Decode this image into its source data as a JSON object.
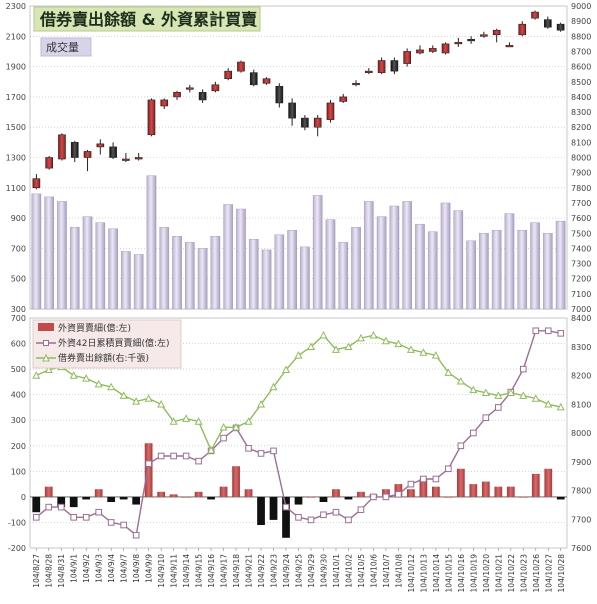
{
  "chart_data": [
    {
      "type": "candlestick",
      "title": "借券賣出餘額 & 外資累計買賣",
      "legend": "成交量",
      "legend_position": "top-left",
      "grid": true,
      "y_left": {
        "min": 300,
        "max": 2300,
        "ticks": [
          300,
          500,
          700,
          900,
          1100,
          1300,
          1500,
          1700,
          1900,
          2100,
          2300
        ]
      },
      "y_right": {
        "min": 7000,
        "max": 9000,
        "ticks": [
          7000,
          7100,
          7200,
          7300,
          7400,
          7500,
          7600,
          7700,
          7800,
          7900,
          8000,
          8100,
          8200,
          8300,
          8400,
          8500,
          8600,
          8700,
          8800,
          8900,
          9000
        ]
      },
      "volume": [
        1060,
        1040,
        1010,
        840,
        910,
        870,
        830,
        680,
        660,
        1180,
        840,
        780,
        740,
        700,
        780,
        990,
        960,
        760,
        690,
        790,
        820,
        710,
        1050,
        890,
        740,
        840,
        1010,
        910,
        980,
        1010,
        860,
        810,
        1000,
        950,
        750,
        800,
        820,
        930,
        820,
        870,
        800,
        880
      ],
      "candles": [
        {
          "open": 7800,
          "close": 7860,
          "high": 7890,
          "low": 7790
        },
        {
          "open": 7930,
          "close": 8000,
          "high": 8010,
          "low": 7920
        },
        {
          "open": 7990,
          "close": 8150,
          "high": 8160,
          "low": 7980
        },
        {
          "open": 8100,
          "close": 8000,
          "high": 8110,
          "low": 7970
        },
        {
          "open": 8000,
          "close": 8040,
          "high": 8050,
          "low": 7910
        },
        {
          "open": 8070,
          "close": 8090,
          "high": 8120,
          "low": 8020
        },
        {
          "open": 8070,
          "close": 8000,
          "high": 8100,
          "low": 7990
        },
        {
          "open": 7990,
          "close": 7990,
          "high": 8030,
          "low": 7970
        },
        {
          "open": 7990,
          "close": 8000,
          "high": 8030,
          "low": 7980
        },
        {
          "open": 8150,
          "close": 8380,
          "high": 8390,
          "low": 8140
        },
        {
          "open": 8340,
          "close": 8380,
          "high": 8390,
          "low": 8320
        },
        {
          "open": 8400,
          "close": 8430,
          "high": 8440,
          "low": 8380
        },
        {
          "open": 8450,
          "close": 8460,
          "high": 8480,
          "low": 8430
        },
        {
          "open": 8430,
          "close": 8380,
          "high": 8450,
          "low": 8360
        },
        {
          "open": 8440,
          "close": 8480,
          "high": 8500,
          "low": 8430
        },
        {
          "open": 8520,
          "close": 8570,
          "high": 8590,
          "low": 8510
        },
        {
          "open": 8570,
          "close": 8630,
          "high": 8640,
          "low": 8560
        },
        {
          "open": 8560,
          "close": 8480,
          "high": 8580,
          "low": 8470
        },
        {
          "open": 8490,
          "close": 8520,
          "high": 8530,
          "low": 8480
        },
        {
          "open": 8470,
          "close": 8360,
          "high": 8490,
          "low": 8330
        },
        {
          "open": 8360,
          "close": 8260,
          "high": 8390,
          "low": 8210
        },
        {
          "open": 8260,
          "close": 8200,
          "high": 8280,
          "low": 8180
        },
        {
          "open": 8200,
          "close": 8260,
          "high": 8280,
          "low": 8140
        },
        {
          "open": 8250,
          "close": 8360,
          "high": 8380,
          "low": 8230
        },
        {
          "open": 8370,
          "close": 8400,
          "high": 8420,
          "low": 8360
        },
        {
          "open": 8480,
          "close": 8490,
          "high": 8510,
          "low": 8470
        },
        {
          "open": 8560,
          "close": 8570,
          "high": 8590,
          "low": 8550
        },
        {
          "open": 8560,
          "close": 8640,
          "high": 8660,
          "low": 8550
        },
        {
          "open": 8640,
          "close": 8570,
          "high": 8660,
          "low": 8550
        },
        {
          "open": 8620,
          "close": 8700,
          "high": 8720,
          "low": 8600
        },
        {
          "open": 8690,
          "close": 8710,
          "high": 8740,
          "low": 8680
        },
        {
          "open": 8700,
          "close": 8720,
          "high": 8740,
          "low": 8690
        },
        {
          "open": 8690,
          "close": 8750,
          "high": 8760,
          "low": 8680
        },
        {
          "open": 8760,
          "close": 8760,
          "high": 8790,
          "low": 8730
        },
        {
          "open": 8780,
          "close": 8770,
          "high": 8800,
          "low": 8750
        },
        {
          "open": 8800,
          "close": 8810,
          "high": 8830,
          "low": 8790
        },
        {
          "open": 8810,
          "close": 8840,
          "high": 8850,
          "low": 8760
        },
        {
          "open": 8740,
          "close": 8740,
          "high": 8760,
          "low": 8730
        },
        {
          "open": 8810,
          "close": 8880,
          "high": 8900,
          "low": 8800
        },
        {
          "open": 8920,
          "close": 8960,
          "high": 8970,
          "low": 8910
        },
        {
          "open": 8910,
          "close": 8860,
          "high": 8930,
          "low": 8850
        },
        {
          "open": 8880,
          "close": 8840,
          "high": 8890,
          "low": 8830
        }
      ]
    },
    {
      "type": "combo",
      "legend_position": "top-left",
      "grid": true,
      "y_left": {
        "min": -200,
        "max": 700,
        "ticks": [
          -200,
          -100,
          0,
          100,
          200,
          300,
          400,
          500,
          600,
          700
        ]
      },
      "y_right": {
        "min": 7600,
        "max": 8400,
        "ticks": [
          7600,
          7700,
          7800,
          7900,
          8000,
          8100,
          8200,
          8300,
          8400
        ]
      },
      "categories": [
        "104/8/27",
        "104/8/28",
        "104/8/31",
        "104/9/1",
        "104/9/2",
        "104/9/3",
        "104/9/4",
        "104/9/7",
        "104/9/8",
        "104/9/9",
        "104/9/10",
        "104/9/11",
        "104/9/14",
        "104/9/15",
        "104/9/16",
        "104/9/17",
        "104/9/18",
        "104/9/21",
        "104/9/22",
        "104/9/23",
        "104/9/24",
        "104/9/25",
        "104/9/29",
        "104/9/30",
        "104/10/1",
        "104/10/2",
        "104/10/5",
        "104/10/6",
        "104/10/7",
        "104/10/8",
        "104/10/12",
        "104/10/13",
        "104/10/14",
        "104/10/15",
        "104/10/16",
        "104/10/19",
        "104/10/20",
        "104/10/21",
        "104/10/22",
        "104/10/23",
        "104/10/26",
        "104/10/27",
        "104/10/28"
      ],
      "series": [
        {
          "name": "外資買賣細(億:左)",
          "type": "bar",
          "values": [
            -60,
            40,
            -40,
            -40,
            -10,
            30,
            -20,
            -10,
            -30,
            210,
            20,
            10,
            0,
            20,
            -10,
            40,
            120,
            30,
            -110,
            -90,
            -160,
            -30,
            0,
            -20,
            30,
            -10,
            20,
            10,
            30,
            50,
            30,
            70,
            40,
            0,
            110,
            50,
            60,
            40,
            40,
            0,
            90,
            110,
            -10
          ]
        },
        {
          "name": "外資42日累積買賣細(億:左)",
          "type": "line",
          "marker": "square",
          "values": [
            -80,
            -40,
            -40,
            -80,
            -80,
            -60,
            -100,
            -110,
            -150,
            130,
            160,
            160,
            160,
            140,
            180,
            230,
            270,
            190,
            170,
            180,
            -40,
            -80,
            -90,
            -70,
            -60,
            -90,
            -50,
            0,
            0,
            10,
            50,
            70,
            70,
            110,
            200,
            250,
            310,
            350,
            410,
            500,
            650,
            650,
            640
          ]
        },
        {
          "name": "借券賣出餘額(右:千張)",
          "type": "line",
          "marker": "triangle",
          "values": [
            8200,
            8220,
            8230,
            8200,
            8190,
            8170,
            8160,
            8130,
            8110,
            8120,
            8100,
            8040,
            8050,
            8040,
            7940,
            8020,
            8020,
            8040,
            8100,
            8160,
            8220,
            8270,
            8300,
            8340,
            8290,
            8300,
            8330,
            8340,
            8320,
            8310,
            8290,
            8280,
            8270,
            8210,
            8180,
            8150,
            8140,
            8130,
            8140,
            8130,
            8120,
            8100,
            8090
          ]
        }
      ]
    }
  ]
}
